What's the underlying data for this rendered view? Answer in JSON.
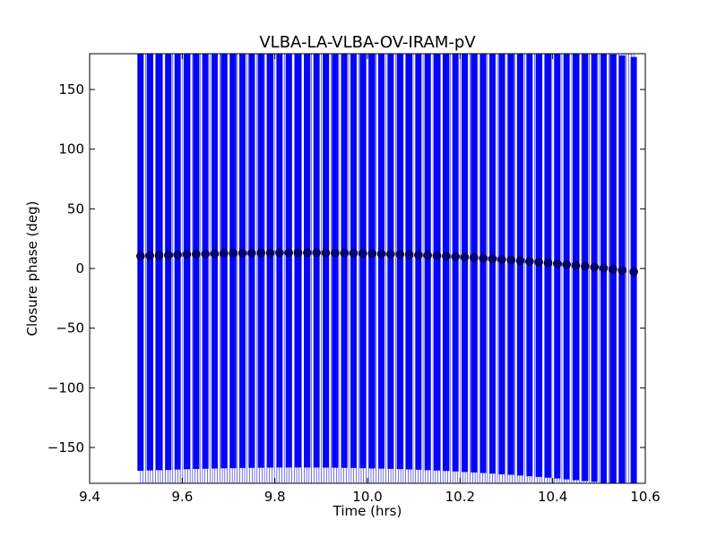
{
  "chart_data": {
    "type": "scatter",
    "title": "VLBA-LA-VLBA-OV-IRAM-pV",
    "xlabel": "Time (hrs)",
    "ylabel": "Closure phase (deg)",
    "xlim": [
      9.4,
      10.6
    ],
    "ylim": [
      -180,
      180
    ],
    "xticks": [
      9.4,
      9.6,
      9.8,
      10.0,
      10.2,
      10.4,
      10.6
    ],
    "xtick_labels": [
      "9.4",
      "9.6",
      "9.8",
      "10.0",
      "10.2",
      "10.4",
      "10.6"
    ],
    "yticks": [
      -150,
      -100,
      -50,
      0,
      50,
      100,
      150
    ],
    "ytick_labels": [
      "−150",
      "−100",
      "−50",
      "0",
      "50",
      "100",
      "150"
    ],
    "grid": false,
    "error_bars": true,
    "error_bar_color": "#0000ff",
    "marker_color": "#00007f",
    "series": [
      {
        "x": [
          9.51,
          9.53,
          9.55,
          9.57,
          9.59,
          9.61,
          9.63,
          9.65,
          9.67,
          9.69,
          9.71,
          9.73,
          9.75,
          9.77,
          9.79,
          9.81,
          9.83,
          9.85,
          9.87,
          9.89,
          9.91,
          9.93,
          9.95,
          9.97,
          9.99,
          10.01,
          10.03,
          10.05,
          10.07,
          10.09,
          10.11,
          10.13,
          10.15,
          10.17,
          10.19,
          10.21,
          10.23,
          10.25,
          10.27,
          10.29,
          10.31,
          10.33,
          10.35,
          10.37,
          10.39,
          10.41,
          10.43,
          10.45,
          10.47,
          10.49,
          10.51,
          10.53,
          10.55,
          10.575
        ],
        "y": [
          10.5,
          10.8,
          11.0,
          11.2,
          11.5,
          11.8,
          12.0,
          12.2,
          12.4,
          12.6,
          12.7,
          12.8,
          12.9,
          13.0,
          13.1,
          13.2,
          13.2,
          13.2,
          13.2,
          13.2,
          13.1,
          13.0,
          12.9,
          12.8,
          12.7,
          12.5,
          12.3,
          12.1,
          11.9,
          11.6,
          11.3,
          11.0,
          10.7,
          10.3,
          9.9,
          9.5,
          9.1,
          8.6,
          8.1,
          7.6,
          7.1,
          6.5,
          5.9,
          5.3,
          4.7,
          4.0,
          3.3,
          2.6,
          1.9,
          1.2,
          0.3,
          -0.6,
          -1.5,
          -2.7
        ],
        "yerr": 180
      }
    ]
  }
}
